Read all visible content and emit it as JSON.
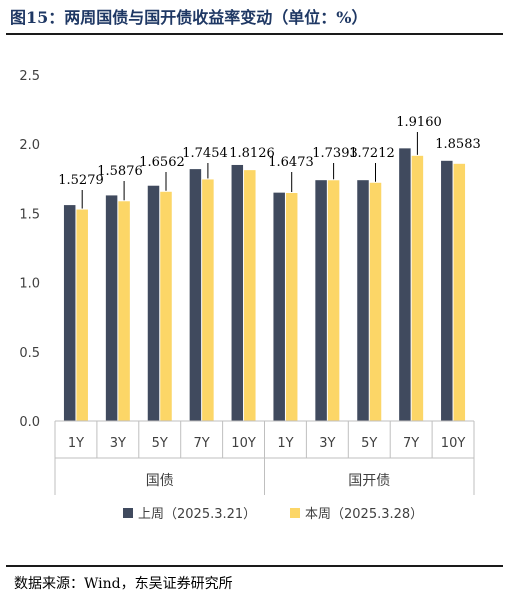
{
  "title": "图15：两周国债与国开债收益率变动（单位：%）",
  "source": "数据来源：Wind，东吴证券研究所",
  "colors": {
    "prev_week": "#404A5E",
    "this_week": "#FCD667",
    "axis": "#bfbfbf",
    "title": "#1F3864"
  },
  "chart_data": {
    "type": "bar",
    "groups": [
      {
        "name": "国债",
        "categories": [
          "1Y",
          "3Y",
          "5Y",
          "7Y",
          "10Y"
        ]
      },
      {
        "name": "国开债",
        "categories": [
          "1Y",
          "3Y",
          "5Y",
          "7Y",
          "10Y"
        ]
      }
    ],
    "series": [
      {
        "name": "上周（2025.3.21）",
        "values": [
          1.56,
          1.63,
          1.7,
          1.82,
          1.85,
          1.65,
          1.74,
          1.74,
          1.97,
          1.88
        ]
      },
      {
        "name": "本周（2025.3.28）",
        "values": [
          1.5279,
          1.5876,
          1.6562,
          1.7454,
          1.8126,
          1.6473,
          1.7393,
          1.7212,
          1.916,
          1.8583
        ]
      }
    ],
    "data_labels": [
      "1.5279",
      "1.5876",
      "1.6562",
      "1.7454",
      "1.8126",
      "1.6473",
      "1.7393",
      "1.7212",
      "1.9160",
      "1.8583"
    ],
    "y_ticks": [
      "0.0",
      "0.5",
      "1.0",
      "1.5",
      "2.0",
      "2.5"
    ],
    "ylim": [
      0,
      2.5
    ],
    "legend_position": "bottom",
    "grid": false
  }
}
